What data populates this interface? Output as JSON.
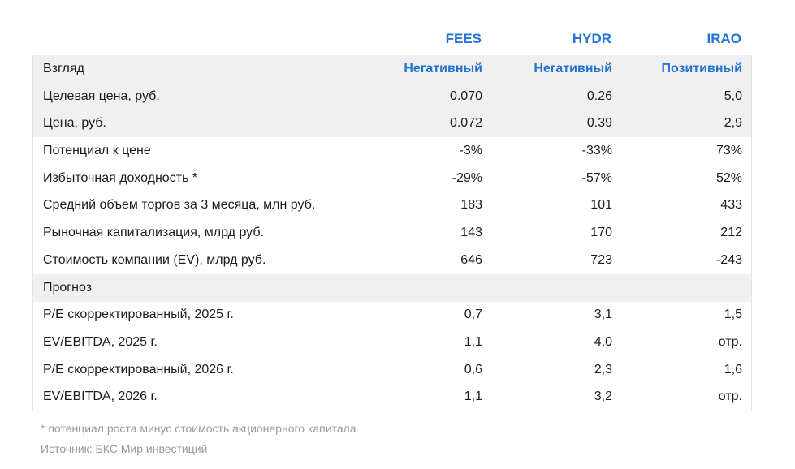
{
  "chart_data": {
    "type": "table",
    "columns": [
      "FEES",
      "HYDR",
      "IRAO"
    ],
    "rows": [
      {
        "label": "Взгляд",
        "values": [
          "Негативный",
          "Негативный",
          "Позитивный"
        ],
        "band": true,
        "accent_values": true
      },
      {
        "label": "Целевая цена, руб.",
        "values": [
          "0.070",
          "0.26",
          "5,0"
        ],
        "band": true
      },
      {
        "label": "Цена, руб.",
        "values": [
          "0.072",
          "0.39",
          "2,9"
        ],
        "band": true
      },
      {
        "label": "Потенциал к цене",
        "values": [
          "-3%",
          "-33%",
          "73%"
        ]
      },
      {
        "label": "Избыточная доходность *",
        "values": [
          "-29%",
          "-57%",
          "52%"
        ]
      },
      {
        "label": "Средний объем торгов за 3 месяца, млн руб.",
        "values": [
          "183",
          "101",
          "433"
        ]
      },
      {
        "label": "Рыночная капитализация, млрд руб.",
        "values": [
          "143",
          "170",
          "212"
        ]
      },
      {
        "label": "Стоимость компании (EV), млрд руб.",
        "values": [
          "646",
          "723",
          "-243"
        ]
      },
      {
        "label": "Прогноз",
        "values": [
          "",
          "",
          ""
        ],
        "section": true,
        "band": true
      },
      {
        "label": "P/E скорректированный, 2025 г.",
        "values": [
          "0,7",
          "3,1",
          "1,5"
        ]
      },
      {
        "label": "EV/EBITDA, 2025 г.",
        "values": [
          "1,1",
          "4,0",
          "отр."
        ]
      },
      {
        "label": "P/E скорректированный, 2026 г.",
        "values": [
          "0,6",
          "2,3",
          "1,6"
        ]
      },
      {
        "label": "EV/EBITDA, 2026 г.",
        "values": [
          "1,1",
          "3,2",
          "отр."
        ]
      }
    ],
    "footnote": "* потенциал роста минус стоимость акционерного капитала",
    "source": "Источник: БКС Мир инвестиций",
    "layout": {
      "legend_position": "none",
      "grid": "off",
      "value_alignment": "right"
    }
  },
  "colors": {
    "accent_blue": "#2274d2",
    "band_gray": "#f0f0f0",
    "border_gray": "#e4e4e4",
    "muted_text": "#9a9a9a",
    "body_text": "#1c1c1c"
  }
}
